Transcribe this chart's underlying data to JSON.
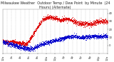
{
  "title": "Milwaukee Weather  Outdoor Temp / Dew Point  by Minute  (24 Hours) (Alternate)",
  "bg_color": "#ffffff",
  "plot_bg": "#ffffff",
  "grid_color": "#aaaaaa",
  "temp_color": "#dd0000",
  "dew_color": "#0000cc",
  "ylim": [
    -10,
    45
  ],
  "yticks": [
    0,
    10,
    20,
    30,
    40
  ],
  "ytick_labels": [
    "0",
    "10",
    "20",
    "30",
    "40"
  ],
  "title_color": "#222222",
  "title_fontsize": 3.5,
  "tick_fontsize": 2.8,
  "n_points": 1440,
  "dot_size": 0.4
}
